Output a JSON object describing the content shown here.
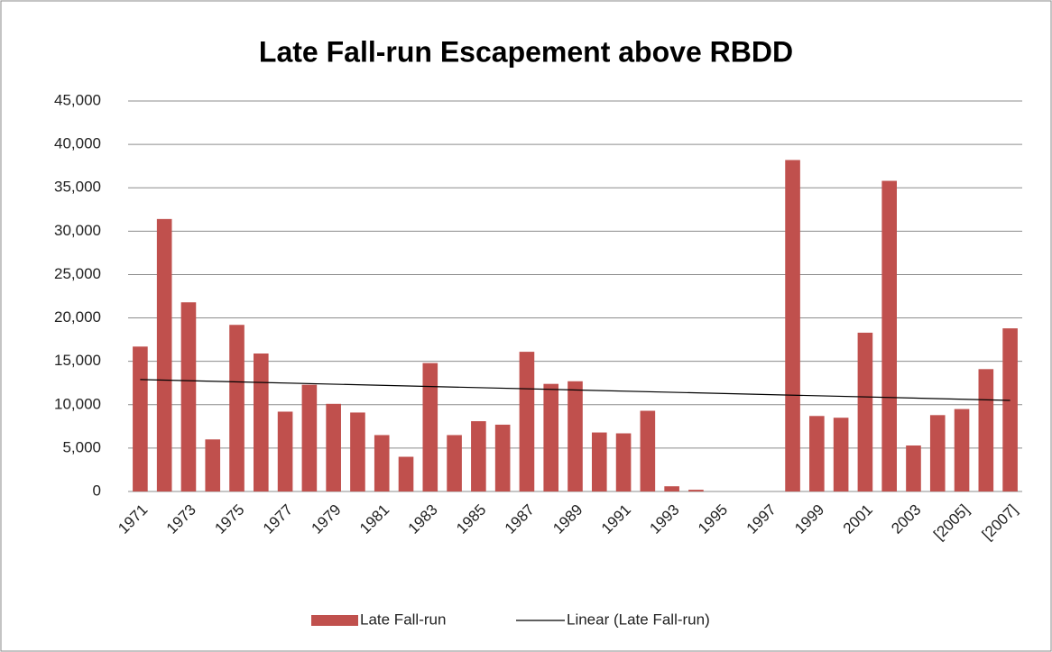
{
  "chart_data": {
    "type": "bar",
    "title": "Late Fall-run Escapement above RBDD",
    "categories": [
      "1971",
      null,
      "1973",
      null,
      "1975",
      null,
      "1977",
      null,
      "1979",
      null,
      "1981",
      null,
      "1983",
      null,
      "1985",
      null,
      "1987",
      null,
      "1989",
      null,
      "1991",
      null,
      "1993",
      null,
      "1995",
      null,
      "1997",
      null,
      "1999",
      null,
      "2001",
      null,
      "2003",
      null,
      "[2005]",
      null,
      "[2007]"
    ],
    "series": [
      {
        "name": "Late Fall-run",
        "color": "#c0504d",
        "values": [
          16700,
          31400,
          21800,
          6000,
          19200,
          15900,
          9200,
          12300,
          10100,
          9100,
          6500,
          4000,
          14800,
          6500,
          8100,
          7700,
          16100,
          12400,
          12700,
          6800,
          6700,
          9300,
          600,
          200,
          0,
          0,
          0,
          38200,
          8700,
          8500,
          18300,
          35800,
          5300,
          8800,
          9500,
          14100,
          18800
        ]
      }
    ],
    "trendline": {
      "name": "Linear (Late Fall-run)",
      "color": "#000000",
      "start": 12900,
      "end": 10500
    },
    "ylim": [
      0,
      45000
    ],
    "yticks": [
      0,
      {
        "value": 5000,
        "label": "5,000"
      },
      {
        "value": 10000,
        "label": "10,000"
      },
      {
        "value": 15000,
        "label": "15,000"
      },
      {
        "value": 20000,
        "label": "20,000"
      },
      {
        "value": 25000,
        "label": "25,000"
      },
      {
        "value": 30000,
        "label": "30,000"
      },
      {
        "value": 35000,
        "label": "35,000"
      },
      {
        "value": 40000,
        "label": "40,000"
      },
      {
        "value": 45000,
        "label": "45,000"
      }
    ],
    "grid": true
  }
}
